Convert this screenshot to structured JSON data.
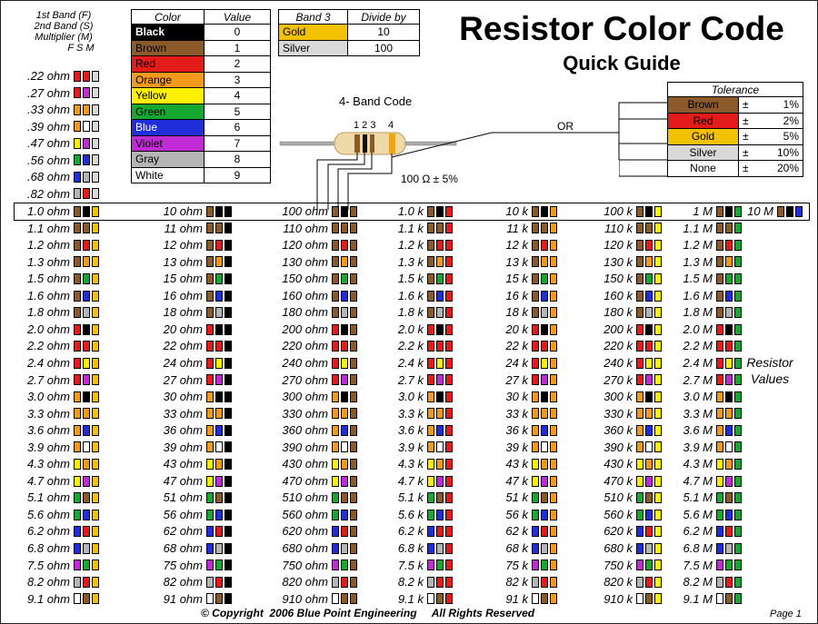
{
  "colors": {
    "black": "#000000",
    "brown": "#8b5a2b",
    "red": "#e41b1b",
    "orange": "#f39a1c",
    "yellow": "#fff200",
    "green": "#17a832",
    "blue": "#1f2ed8",
    "violet": "#c02bd6",
    "gray": "#b5b5b5",
    "white": "#ffffff",
    "gold": "#f2c200",
    "silver": "#d9d9d9"
  },
  "legend": {
    "line1": "1st Band (F)",
    "line2": "2nd Band (S)",
    "line3": "Multiplier (M)",
    "fsm": "F S M"
  },
  "color_table": {
    "headers": [
      "Color",
      "Value"
    ],
    "rows": [
      {
        "name": "Black",
        "value": "0",
        "bg": "black",
        "fg": "#ffffff"
      },
      {
        "name": "Brown",
        "value": "1",
        "bg": "brown",
        "fg": "#000000"
      },
      {
        "name": "Red",
        "value": "2",
        "bg": "red",
        "fg": "#000000"
      },
      {
        "name": "Orange",
        "value": "3",
        "bg": "orange",
        "fg": "#000000"
      },
      {
        "name": "Yellow",
        "value": "4",
        "bg": "yellow",
        "fg": "#000000"
      },
      {
        "name": "Green",
        "value": "5",
        "bg": "green",
        "fg": "#000000"
      },
      {
        "name": "Blue",
        "value": "6",
        "bg": "blue",
        "fg": "#ffffff"
      },
      {
        "name": "Violet",
        "value": "7",
        "bg": "violet",
        "fg": "#000000"
      },
      {
        "name": "Gray",
        "value": "8",
        "bg": "gray",
        "fg": "#000000"
      },
      {
        "name": "White",
        "value": "9",
        "bg": "white",
        "fg": "#000000"
      }
    ]
  },
  "band3_table": {
    "headers": [
      "Band 3",
      "Divide by"
    ],
    "rows": [
      {
        "name": "Gold",
        "value": "10",
        "bg": "gold"
      },
      {
        "name": "Silver",
        "value": "100",
        "bg": "silver"
      }
    ]
  },
  "title": "Resistor Color Code",
  "subtitle": "Quick Guide",
  "resistor": {
    "caption": "4- Band Code",
    "band_numbers": "1 2 3",
    "band4": "4",
    "example": "100 Ω ± 5%",
    "or": "OR"
  },
  "tolerance": {
    "header": "Tolerance",
    "rows": [
      {
        "name": "Brown",
        "sign": "±",
        "value": "1%",
        "bg": "brown"
      },
      {
        "name": "Red",
        "sign": "±",
        "value": "2%",
        "bg": "red"
      },
      {
        "name": "Gold",
        "sign": "±",
        "value": "5%",
        "bg": "gold"
      },
      {
        "name": "Silver",
        "sign": "±",
        "value": "10%",
        "bg": "silver"
      },
      {
        "name": "None",
        "sign": "±",
        "value": "20%",
        "bg": "white"
      }
    ]
  },
  "small_values": [
    ".22 ohm",
    ".27 ohm",
    ".33 ohm",
    ".39 ohm",
    ".47 ohm",
    ".56 ohm",
    ".68 ohm",
    ".82 ohm"
  ],
  "side_label": {
    "line1": "Resistor",
    "line2": "Values"
  },
  "columns": [
    {
      "unit": "ohm",
      "mult": "gold",
      "values": [
        "1.0",
        "1.1",
        "1.2",
        "1.3",
        "1.5",
        "1.6",
        "1.8",
        "2.0",
        "2.2",
        "2.4",
        "2.7",
        "3.0",
        "3.3",
        "3.6",
        "3.9",
        "4.3",
        "4.7",
        "5.1",
        "5.6",
        "6.2",
        "6.8",
        "7.5",
        "8.2",
        "9.1"
      ]
    },
    {
      "unit": "ohm",
      "mult": "black",
      "values": [
        "10",
        "11",
        "12",
        "13",
        "15",
        "16",
        "18",
        "20",
        "22",
        "24",
        "27",
        "30",
        "33",
        "36",
        "39",
        "43",
        "47",
        "51",
        "56",
        "62",
        "68",
        "75",
        "82",
        "91"
      ]
    },
    {
      "unit": "ohm",
      "mult": "brown",
      "values": [
        "100",
        "110",
        "120",
        "130",
        "150",
        "160",
        "180",
        "200",
        "220",
        "240",
        "270",
        "300",
        "330",
        "360",
        "390",
        "430",
        "470",
        "510",
        "560",
        "620",
        "680",
        "750",
        "820",
        "910"
      ]
    },
    {
      "unit": "k",
      "mult": "red",
      "values": [
        "1.0",
        "1.1",
        "1.2",
        "1.3",
        "1.5",
        "1.6",
        "1.8",
        "2.0",
        "2.2",
        "2.4",
        "2.7",
        "3.0",
        "3.3",
        "3.6",
        "3.9",
        "4.3",
        "4.7",
        "5.1",
        "5.6",
        "6.2",
        "6.8",
        "7.5",
        "8.2",
        "9.1"
      ]
    },
    {
      "unit": "k",
      "mult": "orange",
      "values": [
        "10",
        "11",
        "12",
        "13",
        "15",
        "16",
        "18",
        "20",
        "22",
        "24",
        "27",
        "30",
        "33",
        "36",
        "39",
        "43",
        "47",
        "51",
        "56",
        "62",
        "68",
        "75",
        "82",
        "91"
      ]
    },
    {
      "unit": "k",
      "mult": "yellow",
      "values": [
        "100",
        "110",
        "120",
        "130",
        "150",
        "160",
        "180",
        "200",
        "220",
        "240",
        "270",
        "300",
        "330",
        "360",
        "390",
        "430",
        "470",
        "510",
        "560",
        "620",
        "680",
        "750",
        "820",
        "910"
      ]
    },
    {
      "unit": "M",
      "mult": "green",
      "values": [
        "1",
        "1.1",
        "1.2",
        "1.3",
        "1.5",
        "1.6",
        "1.8",
        "2.0",
        "2.2",
        "2.4",
        "2.7",
        "3.0",
        "3.3",
        "3.6",
        "3.9",
        "4.3",
        "4.7",
        "5.1",
        "5.6",
        "6.2",
        "6.8",
        "7.5",
        "8.2",
        "9.1"
      ]
    }
  ],
  "ten_meg": {
    "label": "10 M",
    "bands": [
      "brown",
      "black",
      "blue"
    ]
  },
  "footer": {
    "copyright": "© Copyright  2006 Blue Point Engineering     All Rights Reserved",
    "page": "Page  1"
  }
}
